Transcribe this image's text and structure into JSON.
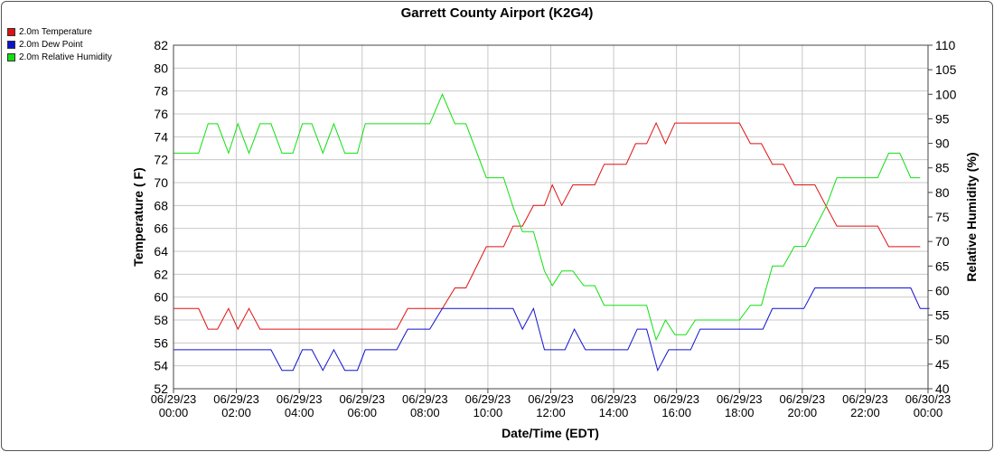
{
  "chart_data": {
    "type": "line",
    "title": "Garrett County Airport (K2G4)",
    "xlabel": "Date/Time (EDT)",
    "ylabel": "Temperature ( F)",
    "y2label": "Relative Humidity (%)",
    "ylim": [
      52,
      82
    ],
    "y2lim": [
      40,
      110
    ],
    "yticks": [
      "52",
      "54",
      "56",
      "58",
      "60",
      "62",
      "64",
      "66",
      "68",
      "70",
      "72",
      "74",
      "76",
      "78",
      "80",
      "82"
    ],
    "y2ticks": [
      "40",
      "45",
      "50",
      "55",
      "60",
      "65",
      "70",
      "75",
      "80",
      "85",
      "90",
      "95",
      "100",
      "105",
      "110"
    ],
    "xticks": [
      {
        "x": 0,
        "line1": "06/29/23",
        "line2": "00:00"
      },
      {
        "x": 2,
        "line1": "06/29/23",
        "line2": "02:00"
      },
      {
        "x": 4,
        "line1": "06/29/23",
        "line2": "04:00"
      },
      {
        "x": 6,
        "line1": "06/29/23",
        "line2": "06:00"
      },
      {
        "x": 8,
        "line1": "06/29/23",
        "line2": "08:00"
      },
      {
        "x": 10,
        "line1": "06/29/23",
        "line2": "10:00"
      },
      {
        "x": 12,
        "line1": "06/29/23",
        "line2": "12:00"
      },
      {
        "x": 14,
        "line1": "06/29/23",
        "line2": "14:00"
      },
      {
        "x": 16,
        "line1": "06/29/23",
        "line2": "16:00"
      },
      {
        "x": 18,
        "line1": "06/29/23",
        "line2": "18:00"
      },
      {
        "x": 20,
        "line1": "06/29/23",
        "line2": "20:00"
      },
      {
        "x": 22,
        "line1": "06/29/23",
        "line2": "22:00"
      },
      {
        "x": 24,
        "line1": "06/30/23",
        "line2": "00:00"
      }
    ],
    "xlim": [
      0,
      24
    ],
    "grid": true,
    "legend_position": "top-left",
    "series": [
      {
        "name": "2.0m Temperature",
        "color": "#e01010",
        "axis": "left",
        "points": [
          [
            0,
            59
          ],
          [
            0.8,
            59
          ],
          [
            1.1,
            57.2
          ],
          [
            1.4,
            57.2
          ],
          [
            1.75,
            59
          ],
          [
            2.05,
            57.2
          ],
          [
            2.4,
            59
          ],
          [
            2.75,
            57.2
          ],
          [
            7.1,
            57.2
          ],
          [
            7.45,
            59
          ],
          [
            8.55,
            59
          ],
          [
            8.95,
            60.8
          ],
          [
            9.3,
            60.8
          ],
          [
            9.95,
            64.4
          ],
          [
            10.5,
            64.4
          ],
          [
            10.8,
            66.2
          ],
          [
            11.1,
            66.2
          ],
          [
            11.45,
            68
          ],
          [
            11.8,
            68
          ],
          [
            12.05,
            69.8
          ],
          [
            12.35,
            68
          ],
          [
            12.7,
            69.8
          ],
          [
            13.4,
            69.8
          ],
          [
            13.7,
            71.6
          ],
          [
            14.4,
            71.6
          ],
          [
            14.7,
            73.4
          ],
          [
            15.05,
            73.4
          ],
          [
            15.35,
            75.2
          ],
          [
            15.65,
            73.4
          ],
          [
            15.95,
            75.2
          ],
          [
            18.0,
            75.2
          ],
          [
            18.35,
            73.4
          ],
          [
            18.7,
            73.4
          ],
          [
            19.05,
            71.6
          ],
          [
            19.4,
            71.6
          ],
          [
            19.75,
            69.8
          ],
          [
            20.4,
            69.8
          ],
          [
            20.75,
            68
          ],
          [
            21.1,
            66.2
          ],
          [
            22.4,
            66.2
          ],
          [
            22.75,
            64.4
          ],
          [
            23.75,
            64.4
          ]
        ]
      },
      {
        "name": "2.0m Dew Point",
        "color": "#1010d0",
        "axis": "left",
        "points": [
          [
            0,
            55.4
          ],
          [
            3.1,
            55.4
          ],
          [
            3.45,
            53.6
          ],
          [
            3.8,
            53.6
          ],
          [
            4.1,
            55.4
          ],
          [
            4.4,
            55.4
          ],
          [
            4.75,
            53.6
          ],
          [
            5.1,
            55.4
          ],
          [
            5.45,
            53.6
          ],
          [
            5.85,
            53.6
          ],
          [
            6.1,
            55.4
          ],
          [
            7.1,
            55.4
          ],
          [
            7.45,
            57.2
          ],
          [
            8.15,
            57.2
          ],
          [
            8.55,
            59
          ],
          [
            10.8,
            59
          ],
          [
            11.1,
            57.2
          ],
          [
            11.45,
            59
          ],
          [
            11.8,
            55.4
          ],
          [
            12.45,
            55.4
          ],
          [
            12.75,
            57.2
          ],
          [
            13.1,
            55.4
          ],
          [
            14.45,
            55.4
          ],
          [
            14.75,
            57.2
          ],
          [
            15.05,
            57.2
          ],
          [
            15.4,
            53.6
          ],
          [
            15.75,
            55.4
          ],
          [
            16.45,
            55.4
          ],
          [
            16.75,
            57.2
          ],
          [
            18.75,
            57.2
          ],
          [
            19.05,
            59
          ],
          [
            20.05,
            59
          ],
          [
            20.4,
            60.8
          ],
          [
            23.45,
            60.8
          ],
          [
            23.75,
            59
          ],
          [
            24.05,
            59
          ]
        ]
      },
      {
        "name": "2.0m Relative Humidity",
        "color": "#10e010",
        "axis": "right",
        "points": [
          [
            0,
            88
          ],
          [
            0.8,
            88
          ],
          [
            1.1,
            94
          ],
          [
            1.4,
            94
          ],
          [
            1.75,
            88
          ],
          [
            2.05,
            94
          ],
          [
            2.4,
            88
          ],
          [
            2.75,
            94
          ],
          [
            3.1,
            94
          ],
          [
            3.45,
            88
          ],
          [
            3.8,
            88
          ],
          [
            4.1,
            94
          ],
          [
            4.4,
            94
          ],
          [
            4.75,
            88
          ],
          [
            5.1,
            94
          ],
          [
            5.45,
            88
          ],
          [
            5.85,
            88
          ],
          [
            6.1,
            94
          ],
          [
            8.15,
            94
          ],
          [
            8.55,
            100
          ],
          [
            8.95,
            94
          ],
          [
            9.3,
            94
          ],
          [
            9.95,
            83
          ],
          [
            10.5,
            83
          ],
          [
            10.8,
            77
          ],
          [
            11.1,
            72
          ],
          [
            11.45,
            72
          ],
          [
            11.8,
            64
          ],
          [
            12.05,
            61
          ],
          [
            12.35,
            64
          ],
          [
            12.7,
            64
          ],
          [
            13.05,
            61
          ],
          [
            13.4,
            61
          ],
          [
            13.7,
            57
          ],
          [
            15.05,
            57
          ],
          [
            15.35,
            50
          ],
          [
            15.65,
            54
          ],
          [
            15.95,
            51
          ],
          [
            16.3,
            51
          ],
          [
            16.6,
            54
          ],
          [
            18.0,
            54
          ],
          [
            18.35,
            57
          ],
          [
            18.7,
            57
          ],
          [
            19.05,
            65
          ],
          [
            19.4,
            65
          ],
          [
            19.75,
            69
          ],
          [
            20.1,
            69
          ],
          [
            20.75,
            77
          ],
          [
            21.1,
            83
          ],
          [
            22.4,
            83
          ],
          [
            22.75,
            88
          ],
          [
            23.1,
            88
          ],
          [
            23.45,
            83
          ],
          [
            23.75,
            83
          ]
        ]
      }
    ]
  }
}
